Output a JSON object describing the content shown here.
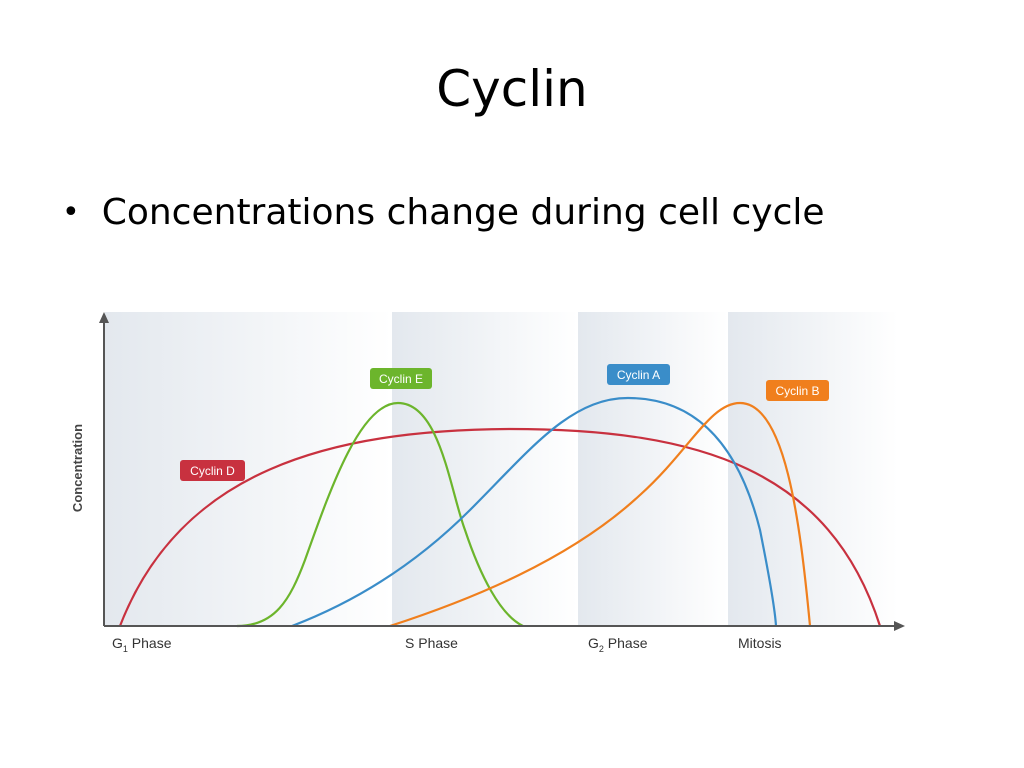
{
  "slide": {
    "title": "Cyclin",
    "bullet": "Concentrations change during cell cycle"
  },
  "chart_data": {
    "type": "line",
    "ylabel": "Concentration",
    "phases": [
      {
        "label_main": "G",
        "label_sub": "1",
        "label_rest": " Phase"
      },
      {
        "label_main": "S Phase",
        "label_sub": "",
        "label_rest": ""
      },
      {
        "label_main": "G",
        "label_sub": "2",
        "label_rest": " Phase"
      },
      {
        "label_main": "Mitosis",
        "label_sub": "",
        "label_rest": ""
      }
    ],
    "series": [
      {
        "name": "Cyclin D",
        "color": "#c8313f",
        "shape": "broad arc rising from start of G1, peaking mid-cycle, falling at end of mitosis"
      },
      {
        "name": "Cyclin E",
        "color": "#6cb52c",
        "shape": "narrow peak at G1/S transition"
      },
      {
        "name": "Cyclin A",
        "color": "#3a8dc9",
        "shape": "rises from late G1, peaks in G2, drops in mitosis"
      },
      {
        "name": "Cyclin B",
        "color": "#f07f1d",
        "shape": "rises from S phase, peaks at start of mitosis, drops sharply"
      }
    ]
  }
}
